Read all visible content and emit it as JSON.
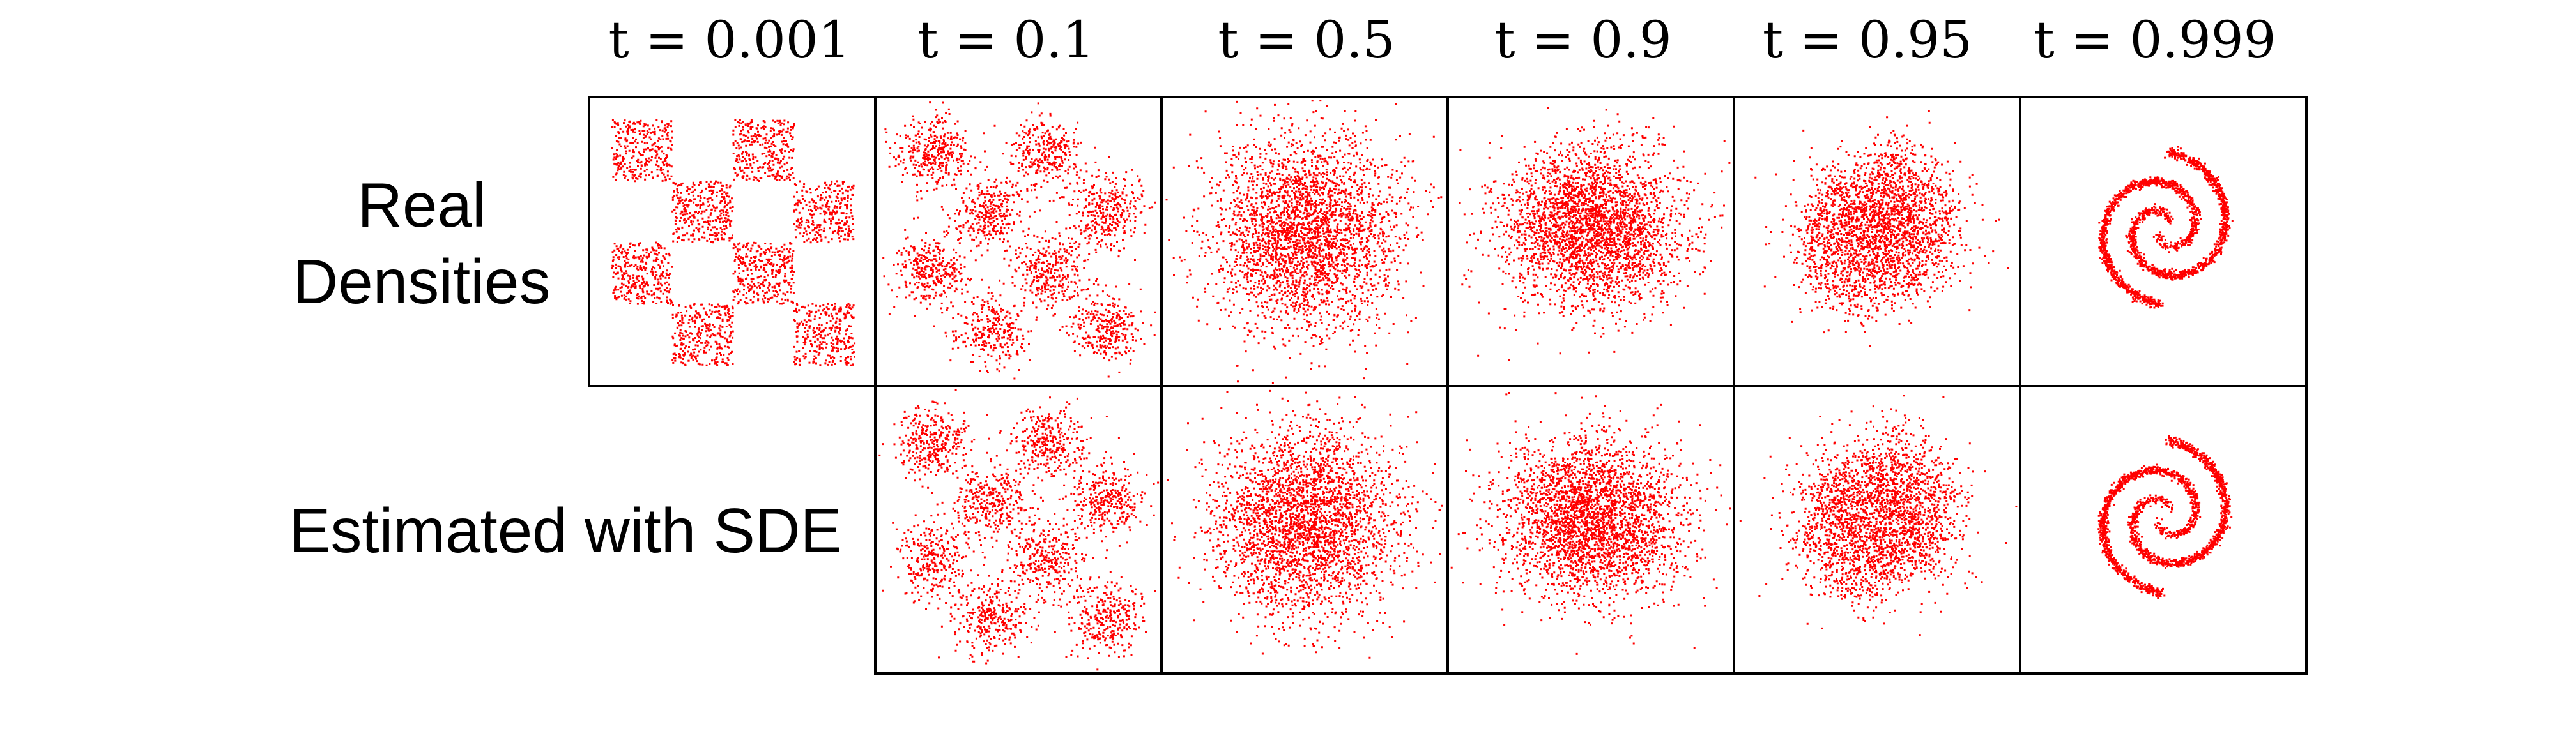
{
  "figure": {
    "column_titles": [
      "t = 0.001",
      "t = 0.1",
      "t = 0.5",
      "t = 0.9",
      "t = 0.95",
      "t = 0.999"
    ],
    "row_labels": {
      "real": [
        "Real",
        "Densities"
      ],
      "estimated": [
        "Estimated with SDE"
      ]
    },
    "point_color": "#ff0000",
    "frame_color": "#000000",
    "panels": {
      "real": [
        "checkerboard",
        "blur-0.1",
        "gaussian-wide",
        "gaussian-swirl",
        "partial-spiral",
        "two-spiral"
      ],
      "estimated": [
        "blur-0.1",
        "gaussian-wide",
        "gaussian-swirl",
        "partial-spiral",
        "two-spiral"
      ]
    }
  }
}
